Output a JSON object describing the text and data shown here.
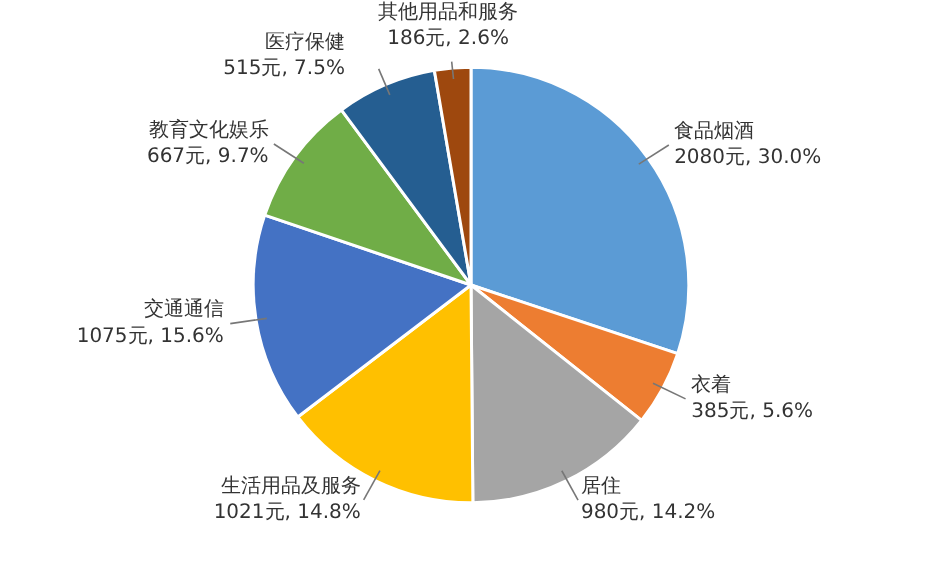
{
  "chart_data": {
    "type": "pie",
    "categories": [
      "食品烟酒",
      "衣着",
      "居住",
      "生活用品及服务",
      "交通通信",
      "教育文化娱乐",
      "医疗保健",
      "其他用品和服务"
    ],
    "values": [
      2080,
      385,
      980,
      1021,
      1075,
      667,
      515,
      186
    ],
    "colors": [
      "#5b9bd5",
      "#ed7d31",
      "#a5a5a5",
      "#ffc000",
      "#4472c4",
      "#70ad47",
      "#255e91",
      "#9e480e"
    ],
    "value_labels": [
      "2080元, 30.0%",
      "385元, 5.6%",
      "980元, 14.2%",
      "1021元, 14.8%",
      "1075元, 15.6%",
      "667元, 9.7%",
      "515元, 7.5%",
      "186元, 2.6%"
    ],
    "legend": false
  }
}
